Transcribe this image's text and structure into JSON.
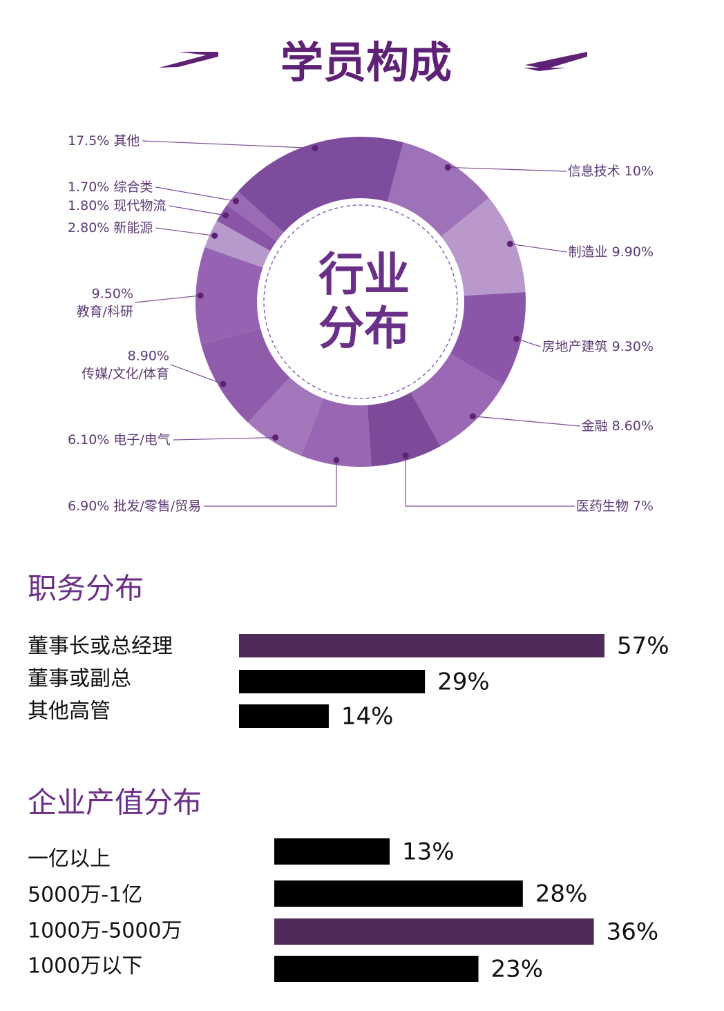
{
  "title": "学员构成",
  "chart_data": [
    {
      "type": "donut",
      "center_text": [
        "行业",
        "分布"
      ],
      "categories": [
        "信息技术",
        "制造业",
        "房地产建筑",
        "金融",
        "医药生物",
        "批发/零售/贸易",
        "电子/电气",
        "传媒/文化/体育",
        "教育/科研",
        "新能源",
        "现代物流",
        "综合类",
        "其他"
      ],
      "values": [
        10,
        9.9,
        9.3,
        8.6,
        7,
        6.9,
        6.1,
        8.9,
        9.5,
        2.8,
        1.8,
        1.7,
        17.5
      ],
      "value_labels": [
        "10%",
        "9.90%",
        "9.30%",
        "8.60%",
        "7%",
        "6.90%",
        "6.10%",
        "8.90%",
        "9.50%",
        "2.80%",
        "1.80%",
        "1.70%",
        "17.5%"
      ],
      "colors": [
        "#9e72b8",
        "#b998cc",
        "#8b55a8",
        "#9a68b5",
        "#7d4a99",
        "#9866b3",
        "#a477bd",
        "#8f5cab",
        "#9563b1",
        "#b79acb",
        "#8a55a7",
        "#9a6bb4",
        "#7e4c9c"
      ]
    },
    {
      "type": "hbar",
      "title": "职务分布",
      "categories": [
        "董事长或总经理",
        "董事或副总",
        "其他高管"
      ],
      "values": [
        57,
        29,
        14
      ],
      "value_labels": [
        "57%",
        "29%",
        "14%"
      ],
      "colors": [
        "#4f2a5a",
        "#000000",
        "#000000"
      ]
    },
    {
      "type": "hbar",
      "title": "企业产值分布",
      "categories": [
        "一亿以上",
        "5000万-1亿",
        "1000万-5000万",
        "1000万以下"
      ],
      "values": [
        13,
        28,
        36,
        23
      ],
      "value_labels": [
        "13%",
        "28%",
        "36%",
        "23%"
      ],
      "colors": [
        "#000000",
        "#000000",
        "#4f2a5a",
        "#000000"
      ]
    }
  ]
}
